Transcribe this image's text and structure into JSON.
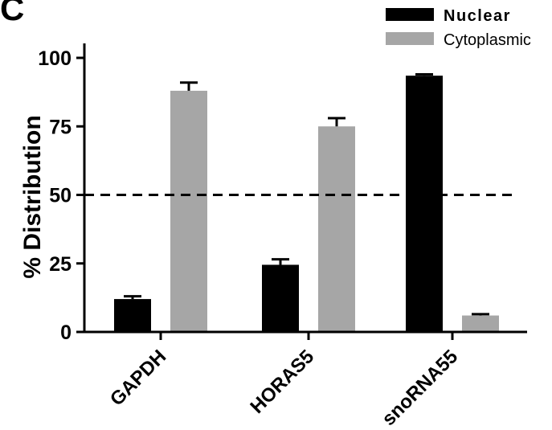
{
  "panel_label": "C",
  "chart_data": {
    "type": "bar",
    "title": "",
    "xlabel": "",
    "ylabel": "% Distribution",
    "ylim": [
      0,
      100
    ],
    "yticks": [
      0,
      25,
      50,
      75,
      100
    ],
    "categories": [
      "GAPDH",
      "HORAS5",
      "snoRNA55"
    ],
    "series": [
      {
        "name": "Nuclear",
        "color": "#000000",
        "values": [
          12,
          24.5,
          93.5
        ],
        "errors": [
          1,
          2,
          0.5
        ]
      },
      {
        "name": "Cytoplasmic",
        "color": "#a6a6a6",
        "values": [
          88,
          75,
          6
        ],
        "errors": [
          3,
          3,
          0.5
        ]
      }
    ],
    "reference_line": {
      "value": 50,
      "style": "dashed"
    },
    "legend_position": "top-right",
    "grid": false
  }
}
